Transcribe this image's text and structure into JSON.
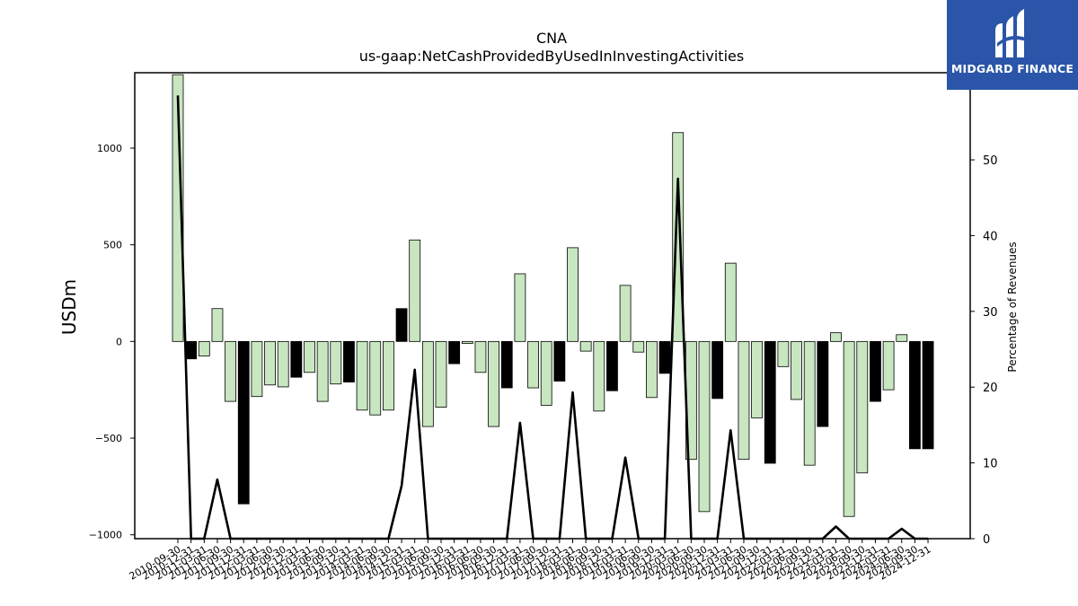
{
  "chart_data": {
    "type": "bar",
    "title": "CNA",
    "subtitle": "us-gaap:NetCashProvidedByUsedInInvestingActivities",
    "ylabel": "USDm",
    "y2label": "Percentage of Revenues",
    "ylim": [
      -1020,
      1390
    ],
    "y2lim": [
      0,
      61.5
    ],
    "yticks": [
      -1000,
      -500,
      0,
      500,
      1000
    ],
    "yticklabels": [
      "−1000",
      "−500",
      "0",
      "500",
      "1000"
    ],
    "y2ticks": [
      0,
      10,
      20,
      30,
      40,
      50,
      60
    ],
    "categories": [
      "2010-09-30",
      "2010-12-31",
      "2011-03-31",
      "2011-06-30",
      "2011-09-30",
      "2011-12-31",
      "2012-03-31",
      "2012-06-30",
      "2012-09-30",
      "2012-12-31",
      "2013-03-31",
      "2013-06-30",
      "2013-09-30",
      "2013-12-31",
      "2014-03-31",
      "2014-06-30",
      "2014-09-30",
      "2014-12-31",
      "2015-03-31",
      "2015-06-30",
      "2015-09-30",
      "2015-12-31",
      "2016-03-31",
      "2016-06-30",
      "2016-09-30",
      "2016-12-31",
      "2017-03-31",
      "2017-06-30",
      "2017-09-30",
      "2017-12-31",
      "2018-03-31",
      "2018-06-30",
      "2018-09-30",
      "2018-12-31",
      "2019-03-31",
      "2019-06-30",
      "2019-09-30",
      "2019-12-31",
      "2020-03-31",
      "2020-06-30",
      "2020-09-30",
      "2020-12-31",
      "2021-03-31",
      "2021-06-30",
      "2021-09-30",
      "2021-12-31",
      "2022-03-31",
      "2022-06-30",
      "2022-09-30",
      "2022-12-31",
      "2023-03-31",
      "2023-06-30",
      "2023-09-30",
      "2023-12-31",
      "2024-03-31",
      "2024-06-30",
      "2024-09-30",
      "2024-12-31"
    ],
    "series": [
      {
        "values": [
          1380,
          -90,
          -75,
          170,
          -310,
          -840,
          -285,
          -225,
          -235,
          -185,
          -160,
          -310,
          -220,
          -210,
          -355,
          -380,
          -355,
          170,
          525,
          -440,
          -340,
          -115,
          -10,
          -160,
          -440,
          -240,
          350,
          -240,
          -330,
          -205,
          485,
          -50,
          -360,
          -255,
          290,
          -55,
          -290,
          -165,
          1080,
          -610,
          -880,
          -295,
          405,
          -610,
          -395,
          -630,
          -130,
          -300,
          -640,
          -440,
          45,
          -905,
          -680,
          -310,
          -250,
          35,
          -555,
          -555
        ],
        "colors": [
          "#c8e6c0",
          "#000000",
          "#c8e6c0",
          "#c8e6c0",
          "#c8e6c0",
          "#000000",
          "#c8e6c0",
          "#c8e6c0",
          "#c8e6c0",
          "#000000",
          "#c8e6c0",
          "#c8e6c0",
          "#c8e6c0",
          "#000000",
          "#c8e6c0",
          "#c8e6c0",
          "#c8e6c0",
          "#000000",
          "#c8e6c0",
          "#c8e6c0",
          "#c8e6c0",
          "#000000",
          "#c8e6c0",
          "#c8e6c0",
          "#c8e6c0",
          "#000000",
          "#c8e6c0",
          "#c8e6c0",
          "#c8e6c0",
          "#000000",
          "#c8e6c0",
          "#c8e6c0",
          "#c8e6c0",
          "#000000",
          "#c8e6c0",
          "#c8e6c0",
          "#c8e6c0",
          "#000000",
          "#c8e6c0",
          "#c8e6c0",
          "#c8e6c0",
          "#000000",
          "#c8e6c0",
          "#c8e6c0",
          "#c8e6c0",
          "#000000",
          "#c8e6c0",
          "#c8e6c0",
          "#c8e6c0",
          "#000000",
          "#c8e6c0",
          "#c8e6c0",
          "#c8e6c0",
          "#000000",
          "#c8e6c0",
          "#c8e6c0",
          "#000000",
          "#000000"
        ]
      },
      {
        "axis": "right",
        "type": "line",
        "values": [
          58.5,
          0,
          0,
          7.8,
          0,
          0,
          0,
          0,
          0,
          0,
          0,
          0,
          0,
          0,
          0,
          0,
          0,
          7,
          22.3,
          0,
          0,
          0,
          0,
          0,
          0,
          0,
          15.3,
          0,
          0,
          0,
          19.3,
          0,
          0,
          0,
          10.7,
          0,
          0,
          0,
          47.5,
          0,
          0,
          0,
          14.3,
          0,
          0,
          0,
          0,
          0,
          0,
          0,
          1.6,
          0,
          0,
          0,
          0,
          1.3,
          0,
          0
        ]
      }
    ],
    "colors": {
      "positive": "#c8e6c0",
      "negative_alt": "#000000",
      "line": "#000000"
    }
  },
  "logo": {
    "text": "MIDGARD FINANCE"
  }
}
